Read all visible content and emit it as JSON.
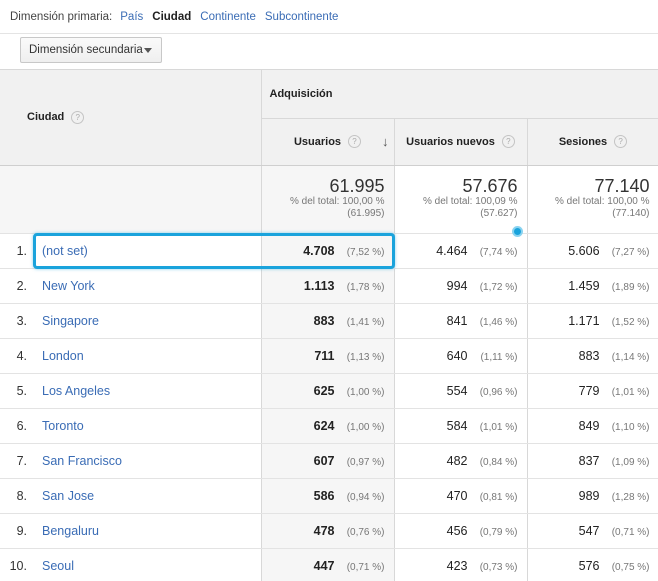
{
  "primary_dimension": {
    "label": "Dimensión primaria:",
    "options": [
      "País",
      "Ciudad",
      "Continente",
      "Subcontinente"
    ],
    "active": "Ciudad"
  },
  "secondary_dimension": {
    "label": "Dimensión secundaria"
  },
  "table": {
    "city_header": "Ciudad",
    "group_header": "Adquisición",
    "metric_headers": [
      "Usuarios",
      "Usuarios nuevos",
      "Sesiones"
    ],
    "totals": [
      {
        "big": "61.995",
        "line1": "% del total: 100,00 %",
        "line2": "(61.995)"
      },
      {
        "big": "57.676",
        "line1": "% del total: 100,09 %",
        "line2": "(57.627)"
      },
      {
        "big": "77.140",
        "line1": "% del total: 100,00 %",
        "line2": "(77.140)"
      }
    ],
    "rows": [
      {
        "idx": "1.",
        "city": "(not set)",
        "u": "4.708",
        "up": "(7,52 %)",
        "n": "4.464",
        "np": "(7,74 %)",
        "s": "5.606",
        "sp": "(7,27 %)"
      },
      {
        "idx": "2.",
        "city": "New York",
        "u": "1.113",
        "up": "(1,78 %)",
        "n": "994",
        "np": "(1,72 %)",
        "s": "1.459",
        "sp": "(1,89 %)"
      },
      {
        "idx": "3.",
        "city": "Singapore",
        "u": "883",
        "up": "(1,41 %)",
        "n": "841",
        "np": "(1,46 %)",
        "s": "1.171",
        "sp": "(1,52 %)"
      },
      {
        "idx": "4.",
        "city": "London",
        "u": "711",
        "up": "(1,13 %)",
        "n": "640",
        "np": "(1,11 %)",
        "s": "883",
        "sp": "(1,14 %)"
      },
      {
        "idx": "5.",
        "city": "Los Angeles",
        "u": "625",
        "up": "(1,00 %)",
        "n": "554",
        "np": "(0,96 %)",
        "s": "779",
        "sp": "(1,01 %)"
      },
      {
        "idx": "6.",
        "city": "Toronto",
        "u": "624",
        "up": "(1,00 %)",
        "n": "584",
        "np": "(1,01 %)",
        "s": "849",
        "sp": "(1,10 %)"
      },
      {
        "idx": "7.",
        "city": "San Francisco",
        "u": "607",
        "up": "(0,97 %)",
        "n": "482",
        "np": "(0,84 %)",
        "s": "837",
        "sp": "(1,09 %)"
      },
      {
        "idx": "8.",
        "city": "San Jose",
        "u": "586",
        "up": "(0,94 %)",
        "n": "470",
        "np": "(0,81 %)",
        "s": "989",
        "sp": "(1,28 %)"
      },
      {
        "idx": "9.",
        "city": "Bengaluru",
        "u": "478",
        "up": "(0,76 %)",
        "n": "456",
        "np": "(0,79 %)",
        "s": "547",
        "sp": "(0,71 %)"
      },
      {
        "idx": "10.",
        "city": "Seoul",
        "u": "447",
        "up": "(0,71 %)",
        "n": "423",
        "np": "(0,73 %)",
        "s": "576",
        "sp": "(0,75 %)"
      }
    ]
  },
  "icons": {
    "help": "question-circle-icon",
    "sort": "sort-down-arrow-icon",
    "dropdown": "caret-down-icon"
  },
  "colors": {
    "link": "#3a6cb5",
    "highlight": "#1aa3dc",
    "header_bg": "#f1f1f1"
  }
}
